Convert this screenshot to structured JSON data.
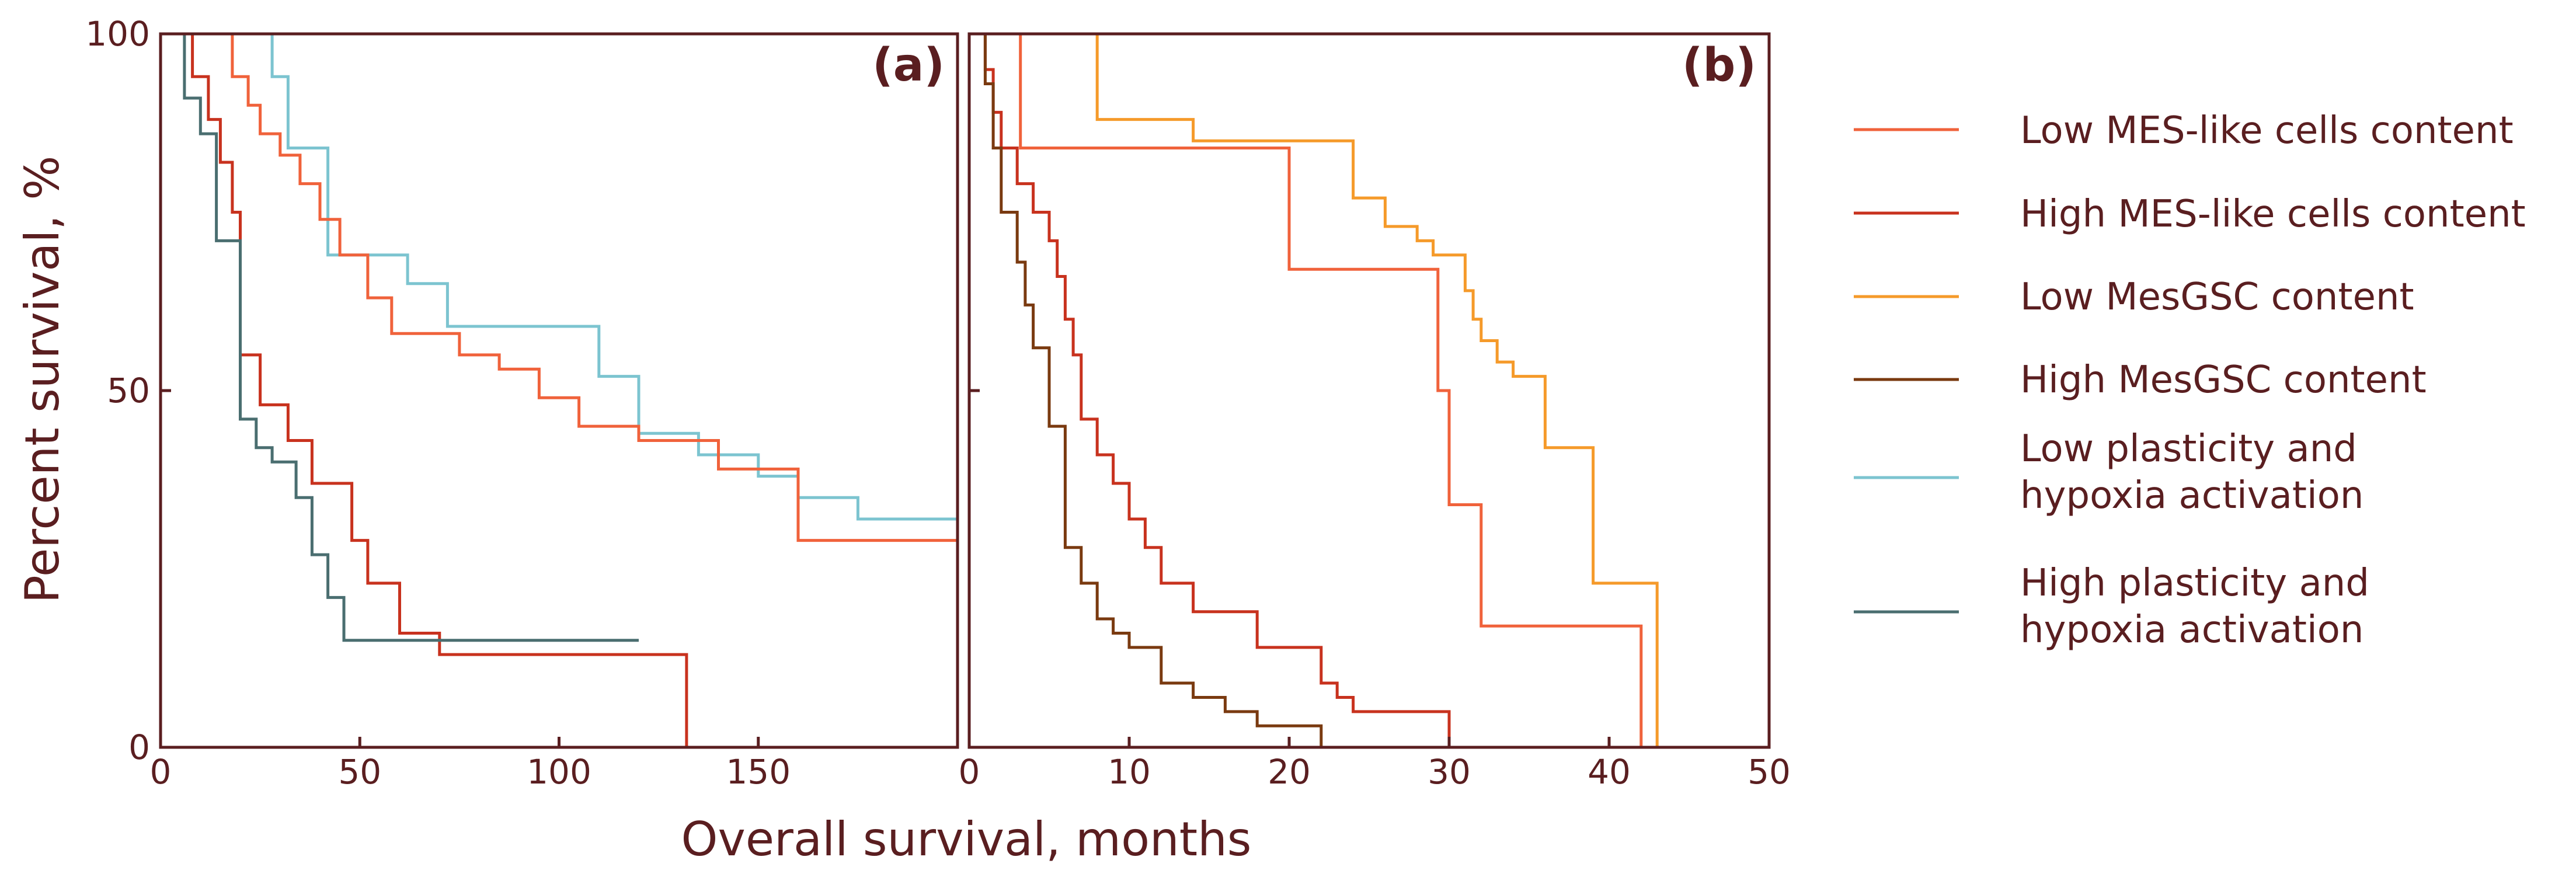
{
  "colors": {
    "axis": "#5a1e20",
    "low_mes": "#f0623b",
    "high_mes": "#c8321e",
    "low_mesgsc": "#f59a2a",
    "high_mesgsc": "#7a3a10",
    "low_plasticity": "#7cc4d0",
    "high_plasticity": "#4a6e70"
  },
  "ylabel": "Percent survival, %",
  "xlabel": "Overall survival, months",
  "legend": [
    {
      "lines": [
        "Low MES-like cells content"
      ],
      "color_key": "low_mes"
    },
    {
      "lines": [
        "High MES-like cells content"
      ],
      "color_key": "high_mes"
    },
    {
      "lines": [
        "Low MesGSC content"
      ],
      "color_key": "low_mesgsc"
    },
    {
      "lines": [
        "High MesGSC content"
      ],
      "color_key": "high_mesgsc"
    },
    {
      "lines": [
        "Low plasticity and",
        "hypoxia activation"
      ],
      "color_key": "low_plasticity"
    },
    {
      "lines": [
        "High plasticity and",
        "hypoxia activation"
      ],
      "color_key": "high_plasticity"
    }
  ],
  "chart_data": [
    {
      "type": "line",
      "panel_label": "(a)",
      "xlim": [
        0,
        200
      ],
      "ylim": [
        0,
        100
      ],
      "xticks": [
        0,
        50,
        100,
        150
      ],
      "xtick_labels": [
        "0",
        "50",
        "100",
        "150"
      ],
      "yticks": [
        0,
        50,
        100
      ],
      "ytick_labels": [
        "0",
        "50",
        "100"
      ],
      "series": [
        {
          "name": "Low plasticity and hypoxia activation",
          "color_key": "low_plasticity",
          "x": [
            0,
            5,
            23,
            28,
            32,
            38,
            42,
            55,
            62,
            72,
            95,
            110,
            120,
            135,
            150,
            160,
            175,
            200
          ],
          "y": [
            100,
            100,
            100,
            94,
            84,
            84,
            69,
            69,
            65,
            59,
            59,
            52,
            44,
            41,
            38,
            35,
            32,
            32
          ]
        },
        {
          "name": "Low MES-like cells content",
          "color_key": "low_mes",
          "x": [
            0,
            5,
            18,
            22,
            25,
            30,
            35,
            40,
            45,
            50,
            52,
            58,
            75,
            85,
            95,
            105,
            120,
            140,
            160,
            200
          ],
          "y": [
            100,
            100,
            94,
            90,
            86,
            83,
            79,
            74,
            69,
            69,
            63,
            58,
            55,
            53,
            49,
            45,
            43,
            39,
            29,
            29
          ]
        },
        {
          "name": "High MES-like cells content",
          "color_key": "high_mes",
          "x": [
            0,
            8,
            12,
            15,
            18,
            20,
            25,
            32,
            38,
            45,
            48,
            52,
            60,
            63,
            70,
            120,
            132,
            132
          ],
          "y": [
            100,
            94,
            88,
            82,
            75,
            55,
            48,
            43,
            37,
            37,
            29,
            23,
            16,
            16,
            13,
            13,
            13,
            0
          ]
        },
        {
          "name": "High plasticity and hypoxia activation",
          "color_key": "high_plasticity",
          "x": [
            0,
            6,
            10,
            14,
            18,
            20,
            24,
            28,
            34,
            38,
            42,
            46,
            48,
            50,
            120
          ],
          "y": [
            100,
            91,
            86,
            71,
            71,
            46,
            42,
            40,
            35,
            27,
            21,
            15,
            15,
            15,
            15
          ]
        }
      ]
    },
    {
      "type": "line",
      "panel_label": "(b)",
      "xlim": [
        0,
        50
      ],
      "ylim": [
        0,
        100
      ],
      "xticks": [
        0,
        10,
        20,
        30,
        40,
        50
      ],
      "xtick_labels": [
        "0",
        "10",
        "20",
        "30",
        "40",
        "50"
      ],
      "yticks": [
        0,
        50,
        100
      ],
      "ytick_labels": [
        "",
        "",
        ""
      ],
      "series": [
        {
          "name": "Low MesGSC content",
          "color_key": "low_mesgsc",
          "x": [
            0,
            5,
            8,
            14,
            24,
            26,
            28,
            29,
            31,
            31.5,
            32,
            33,
            34,
            36,
            36.5,
            37,
            39,
            40,
            42,
            43
          ],
          "y": [
            100,
            100,
            88,
            85,
            77,
            73,
            71,
            69,
            64,
            60,
            57,
            54,
            52,
            42,
            42,
            42,
            23,
            23,
            23,
            0
          ]
        },
        {
          "name": "Low MES-like cells content",
          "color_key": "low_mes",
          "x": [
            0,
            3,
            3.2,
            20,
            29,
            29.3,
            30,
            32,
            32.2,
            42,
            42
          ],
          "y": [
            100,
            100,
            84,
            67,
            67,
            50,
            34,
            17,
            17,
            17,
            0
          ]
        },
        {
          "name": "High MES-like cells content",
          "color_key": "high_mes",
          "x": [
            0,
            1,
            1.5,
            2,
            3,
            4,
            5,
            5.5,
            6,
            6.5,
            7,
            8,
            9,
            10,
            11,
            12,
            14,
            18,
            22,
            23,
            24,
            30,
            30
          ],
          "y": [
            100,
            95,
            89,
            84,
            79,
            75,
            71,
            66,
            60,
            55,
            46,
            41,
            37,
            32,
            28,
            23,
            19,
            14,
            9,
            7,
            5,
            5,
            0
          ]
        },
        {
          "name": "High MesGSC content",
          "color_key": "high_mesgsc",
          "x": [
            0,
            1,
            1.5,
            2,
            3,
            3.5,
            4,
            5,
            6,
            7,
            8,
            9,
            10,
            12,
            14,
            16,
            18,
            20,
            22,
            22
          ],
          "y": [
            100,
            93,
            84,
            75,
            68,
            62,
            56,
            45,
            28,
            23,
            18,
            16,
            14,
            9,
            7,
            5,
            3,
            3,
            3,
            0
          ]
        }
      ]
    }
  ]
}
